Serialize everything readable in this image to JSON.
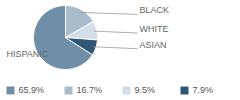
{
  "chart_data": {
    "type": "pie",
    "categories": [
      "HISPANIC",
      "BLACK",
      "WHITE",
      "ASIAN"
    ],
    "values": [
      65.9,
      16.7,
      9.5,
      7.9
    ],
    "value_labels": [
      "65.9%",
      "16.7%",
      "9.5%",
      "7.9%"
    ],
    "colors": [
      "#6f8fa9",
      "#a8bccc",
      "#d4dee6",
      "#2f5676"
    ],
    "legend": "bottom"
  }
}
